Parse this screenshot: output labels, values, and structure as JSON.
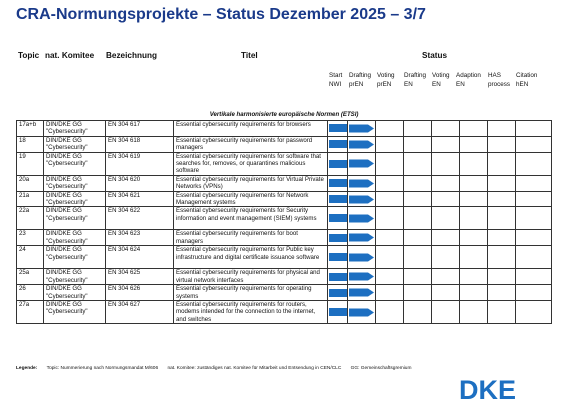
{
  "header": {
    "title": "CRA-Normungsprojekte – Status Dezember 2025 – 3/7"
  },
  "columns": {
    "topic": "Topic",
    "committee": "nat. Komitee",
    "designation": "Bezeichnung",
    "title": "Titel",
    "status": "Status"
  },
  "status_columns": [
    [
      "Start",
      "NWI"
    ],
    [
      "Drafting",
      "prEN"
    ],
    [
      "Voting",
      "prEN"
    ],
    [
      "Drafting",
      "EN"
    ],
    [
      "Voting",
      "EN"
    ],
    [
      "Adaption",
      "EN"
    ],
    [
      "HAS",
      "process"
    ],
    [
      "Citation",
      "hEN"
    ]
  ],
  "section_label": "Vertikale harmonisierte europäische Normen (ETSI)",
  "rows": [
    {
      "topic": "17a+b",
      "committee": "DIN/DKE GG \"Cybersecurity\"",
      "designation": "EN 304 617",
      "title": "Essential cybersecurity requirements for browsers",
      "progress_steps": 2
    },
    {
      "topic": "18",
      "committee": "DIN/DKE GG \"Cybersecurity\"",
      "designation": "EN 304 618",
      "title": "Essential cybersecurity requirements for password managers",
      "progress_steps": 2
    },
    {
      "topic": "19",
      "committee": "DIN/DKE GG \"Cybersecurity\"",
      "designation": "EN 304 619",
      "title": "Essential cybersecurity requirements for software that searches for, removes, or quarantines malicious software",
      "progress_steps": 2
    },
    {
      "topic": "20a",
      "committee": "DIN/DKE GG \"Cybersecurity\"",
      "designation": "EN 304 620",
      "title": "Essential cybersecurity requirements for Virtual Private Networks (VPNs)",
      "progress_steps": 2
    },
    {
      "topic": "21a",
      "committee": "DIN/DKE GG \"Cybersecurity\"",
      "designation": "EN 304 621",
      "title": "Essential cybersecurity requirements for Network Management systems",
      "progress_steps": 2
    },
    {
      "topic": "22a",
      "committee": "DIN/DKE GG \"Cybersecurity\"",
      "designation": "EN 304 622",
      "title": "Essential cybersecurity requirements for Security information and event management (SIEM) systems",
      "progress_steps": 2
    },
    {
      "topic": "23",
      "committee": "DIN/DKE GG \"Cybersecurity\"",
      "designation": "EN 304 623",
      "title": "Essential cybersecurity requirements for boot managers",
      "progress_steps": 2
    },
    {
      "topic": "24",
      "committee": "DIN/DKE GG \"Cybersecurity\"",
      "designation": "EN 304 624",
      "title": "Essential cybersecurity requirements for Public key infrastructure and digital certificate issuance software",
      "progress_steps": 2
    },
    {
      "topic": "25a",
      "committee": "DIN/DKE GG \"Cybersecurity\"",
      "designation": "EN 304 625",
      "title": "Essential cybersecurity requirements for physical and virtual network interfaces",
      "progress_steps": 2
    },
    {
      "topic": "26",
      "committee": "DIN/DKE GG \"Cybersecurity\"",
      "designation": "EN 304 626",
      "title": "Essential cybersecurity requirements for operating systems",
      "progress_steps": 2
    },
    {
      "topic": "27a",
      "committee": "DIN/DKE GG \"Cybersecurity\"",
      "designation": "EN 304 627",
      "title": "Essential cybersecurity requirements for routers, modems intended for the connection to the internet, and switches",
      "progress_steps": 2
    }
  ],
  "legend": {
    "label": "Legende:",
    "topic": "Topic: Nummerierung nach Normungsmandat M/606",
    "committee": "nat. Komitee: zuständiges nat. Komitee für Mitarbeit und Entsendung in CEN/CLC",
    "gg": "GG: Gemeinschaftsgremium"
  },
  "logo": {
    "text": "DKE"
  },
  "colors": {
    "title": "#1a3a8a",
    "progress": "#1d6fc1",
    "logo": "#1d6fc1"
  }
}
